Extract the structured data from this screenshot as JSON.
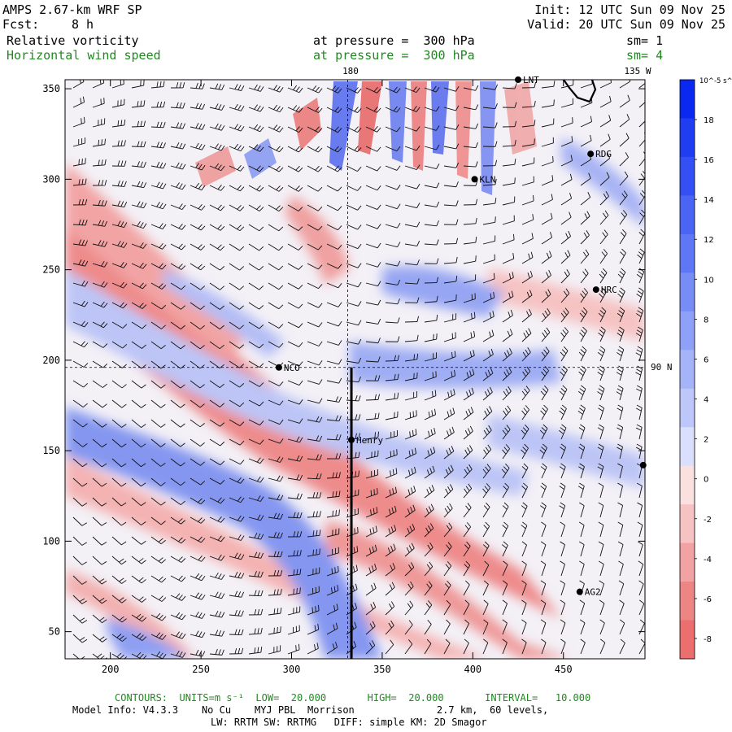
{
  "header": {
    "model": "AMPS 2.67-km WRF SP",
    "forecast_label": "Fcst:",
    "forecast_value": "8 h",
    "init": "Init: 12 UTC Sun 09 Nov 25",
    "valid": "Valid: 20 UTC Sun 09 Nov 25",
    "field1_name": "Relative vorticity",
    "field1_level": "at pressure =  300 hPa",
    "field1_sm": "sm= 1",
    "field2_name": "Horizontal wind speed",
    "field2_level": "at pressure =  300 hPa",
    "field2_sm": "sm= 4"
  },
  "map": {
    "top_meridian_label": "180",
    "top_right_label": "135 W",
    "right_parallel_label": "90 N",
    "x_ticks": [
      "200",
      "250",
      "300",
      "350",
      "400",
      "450"
    ],
    "y_ticks": [
      "50",
      "100",
      "150",
      "200",
      "250",
      "300",
      "350"
    ],
    "x_range": [
      175,
      495
    ],
    "y_range": [
      35,
      355
    ],
    "stations": [
      {
        "name": "LNT",
        "x": 425,
        "y": 355
      },
      {
        "name": "RDG",
        "x": 465,
        "y": 314
      },
      {
        "name": "KLN",
        "x": 401,
        "y": 300
      },
      {
        "name": "HRC",
        "x": 468,
        "y": 239
      },
      {
        "name": "NCO",
        "x": 293,
        "y": 196
      },
      {
        "name": "Henry",
        "x": 333,
        "y": 156
      },
      {
        "name": "AG2",
        "x": 459,
        "y": 72
      }
    ],
    "extra_points": [
      {
        "x": 494,
        "y": 142
      }
    ],
    "cross_section": {
      "x": 333,
      "y_start": 35,
      "y_end": 196
    },
    "meridian_180_x": 331,
    "parallel_90n_y": 196
  },
  "colorbar": {
    "units": "10^-5 s^-1",
    "labels": [
      "18",
      "16",
      "14",
      "12",
      "10",
      "8",
      "6",
      "4",
      "2",
      "0",
      "-2",
      "-4",
      "-6",
      "-8"
    ],
    "blue_colors": [
      "#0a28f0",
      "#1f3ef2",
      "#3450f4",
      "#4a64f4",
      "#6077f5",
      "#778cf5",
      "#8ea0f7",
      "#a5b3f8",
      "#bdc7fa",
      "#d9dffc"
    ],
    "red_colors": [
      "#fbe0e0",
      "#f7c2c2",
      "#f2a2a2",
      "#ee8585",
      "#eb6f6f"
    ]
  },
  "footer": {
    "contours": "CONTOURS:  UNITS=m s⁻¹  LOW=  20.000       HIGH=  20.000       INTERVAL=   10.000",
    "model_info": "Model Info: V4.3.3    No Cu    MYJ PBL  Morrison              2.7 km,  60 levels,",
    "physics": "LW: RRTM SW: RRTMG   DIFF: simple KM: 2D Smagor"
  },
  "colors": {
    "positive_max": "#3346e8",
    "negative_max": "#e85a5a",
    "text_green": "#1f8a1f"
  }
}
